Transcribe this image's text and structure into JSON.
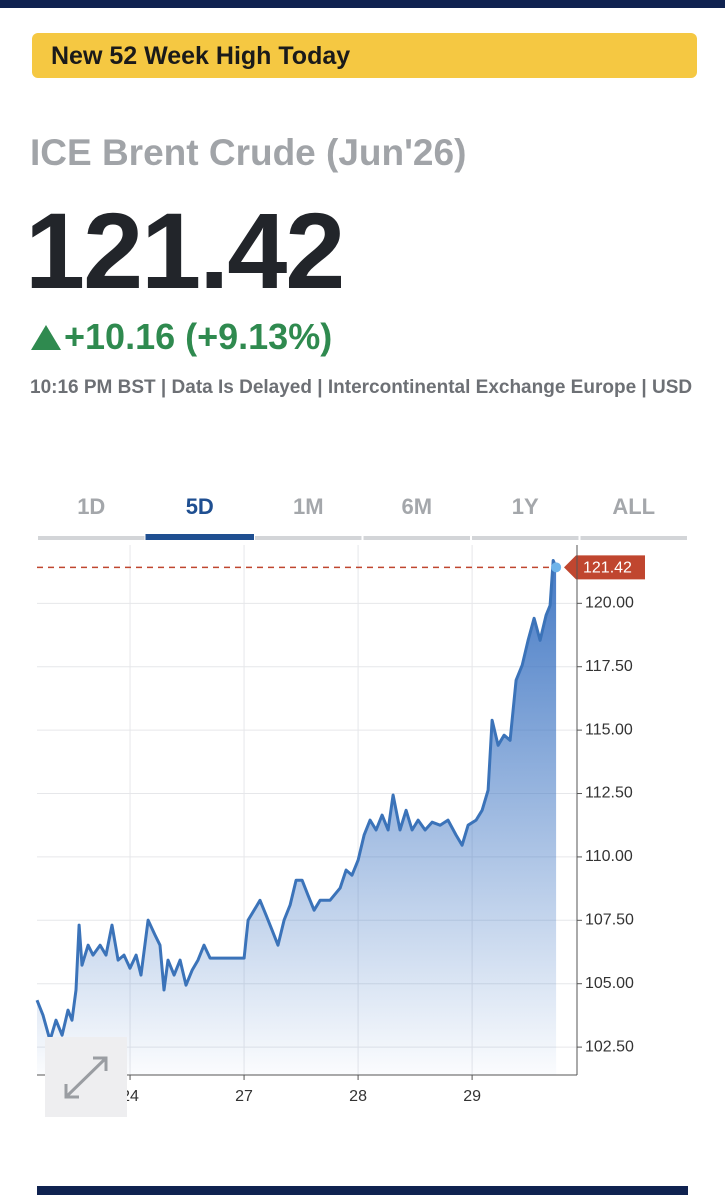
{
  "banner": "New 52 Week High Today",
  "quote": {
    "name": "ICE Brent Crude (Jun'26)",
    "price": "121.42",
    "change": "+10.16 (+9.13%)",
    "info": "10:16 PM BST | Data Is Delayed | Intercontinental Exchange Europe | USD"
  },
  "tabs": [
    "1D",
    "5D",
    "1M",
    "6M",
    "1Y",
    "ALL"
  ],
  "selected_tab_index": 1,
  "chart_data": {
    "type": "area",
    "color": "#3b73b9",
    "marker_line_color": "#c0462f",
    "x": [
      0.184,
      0.237,
      0.298,
      0.351,
      0.404,
      0.456,
      0.491,
      0.526,
      0.553,
      0.579,
      0.632,
      0.675,
      0.737,
      0.789,
      0.842,
      0.895,
      0.947,
      1.0,
      1.053,
      1.096,
      1.158,
      1.219,
      1.263,
      1.298,
      1.333,
      1.386,
      1.439,
      1.491,
      1.544,
      1.596,
      1.649,
      1.702,
      1.789,
      1.895,
      2.0,
      2.035,
      2.088,
      2.14,
      2.193,
      2.246,
      2.298,
      2.351,
      2.404,
      2.456,
      2.509,
      2.561,
      2.614,
      2.667,
      2.754,
      2.842,
      2.895,
      2.947,
      3.0,
      3.053,
      3.105,
      3.158,
      3.211,
      3.263,
      3.307,
      3.368,
      3.421,
      3.474,
      3.526,
      3.588,
      3.649,
      3.719,
      3.789,
      3.86,
      3.912,
      3.965,
      4.035,
      4.088,
      4.14,
      4.175,
      4.228,
      4.281,
      4.333,
      4.386,
      4.439,
      4.491,
      4.544,
      4.596,
      4.649,
      4.684,
      4.711,
      4.737
    ],
    "values": [
      104.35,
      103.76,
      102.77,
      103.56,
      102.97,
      103.96,
      103.56,
      104.75,
      107.31,
      105.73,
      106.52,
      106.13,
      106.52,
      106.13,
      107.31,
      105.93,
      106.13,
      105.61,
      106.13,
      105.34,
      107.51,
      106.92,
      106.52,
      104.75,
      105.93,
      105.34,
      105.93,
      104.94,
      105.53,
      105.93,
      106.52,
      106.01,
      106.01,
      106.01,
      106.01,
      107.51,
      107.9,
      108.29,
      107.7,
      107.11,
      106.52,
      107.51,
      108.1,
      109.08,
      109.08,
      108.49,
      107.9,
      108.29,
      108.29,
      108.77,
      109.48,
      109.28,
      109.87,
      110.86,
      111.45,
      111.06,
      111.65,
      111.06,
      112.44,
      111.06,
      111.84,
      111.06,
      111.45,
      111.06,
      111.37,
      111.25,
      111.45,
      110.86,
      110.46,
      111.25,
      111.45,
      111.84,
      112.63,
      115.39,
      114.4,
      114.8,
      114.6,
      116.97,
      117.56,
      118.54,
      119.41,
      118.54,
      119.53,
      119.92,
      121.69,
      121.42
    ],
    "xlim": [
      0.184,
      4.92
    ],
    "xticks": [
      {
        "value": 1,
        "label": "24"
      },
      {
        "value": 2,
        "label": "27"
      },
      {
        "value": 3,
        "label": "28"
      },
      {
        "value": 4,
        "label": "29"
      }
    ],
    "ylim": [
      101.4,
      122.3
    ],
    "yticks": [
      {
        "value": 102.5,
        "label": "102.50"
      },
      {
        "value": 105,
        "label": "105.00"
      },
      {
        "value": 107.5,
        "label": "107.50"
      },
      {
        "value": 110,
        "label": "110.00"
      },
      {
        "value": 112.5,
        "label": "112.50"
      },
      {
        "value": 115,
        "label": "115.00"
      },
      {
        "value": 117.5,
        "label": "117.50"
      },
      {
        "value": 120,
        "label": "120.00"
      }
    ],
    "grid": true
  }
}
